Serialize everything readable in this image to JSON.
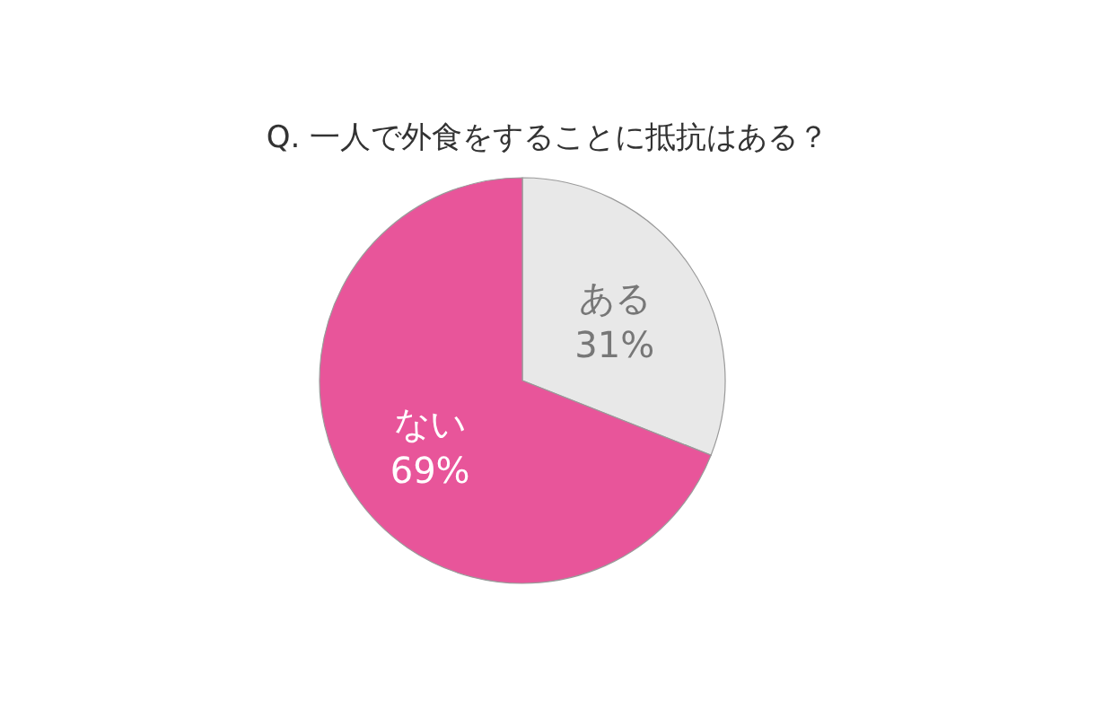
{
  "chart_data": {
    "type": "pie",
    "title": "Q. 一人で外食をすることに抵抗はある？",
    "categories": [
      "ある",
      "ない"
    ],
    "values": [
      31,
      69
    ],
    "colors": [
      "#e8e8e8",
      "#e8559a"
    ],
    "value_labels": [
      "31%",
      "69%"
    ]
  }
}
